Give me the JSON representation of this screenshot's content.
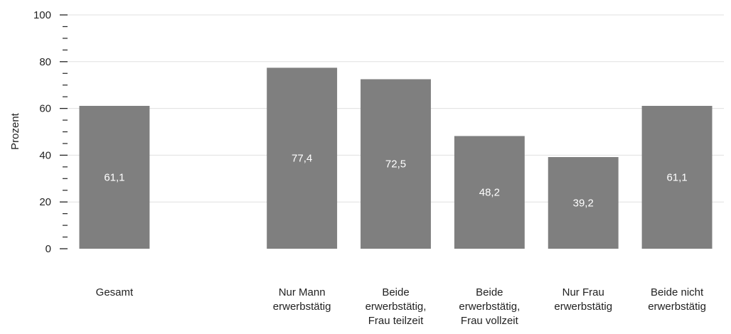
{
  "colors": {
    "bar": "#7f7f7f",
    "bar_label": "#ffffff",
    "grid": "#e0e0e0",
    "axis_text": "#222222",
    "tick": "#222222"
  },
  "chart_data": {
    "type": "bar",
    "title": "",
    "xlabel": "",
    "ylabel": "Prozent",
    "ylim": [
      0,
      100
    ],
    "yticks": [
      "0",
      "20",
      "40",
      "60",
      "80",
      "100"
    ],
    "grid": true,
    "legend": "none",
    "categories": [
      [
        "Gesamt"
      ],
      [],
      [
        "Nur Mann",
        "erwerbstätig"
      ],
      [
        "Beide",
        "erwerbstätig,",
        "Frau teilzeit"
      ],
      [
        "Beide",
        "erwerbstätig,",
        "Frau vollzeit"
      ],
      [
        "Nur Frau",
        "erwerbstätig"
      ],
      [
        "Beide nicht",
        "erwerbstätig"
      ]
    ],
    "values": [
      61.1,
      null,
      77.4,
      72.5,
      48.2,
      39.2,
      61.1
    ],
    "data_labels": [
      "61,1",
      "",
      "77,4",
      "72,5",
      "48,2",
      "39,2",
      "61,1"
    ]
  }
}
